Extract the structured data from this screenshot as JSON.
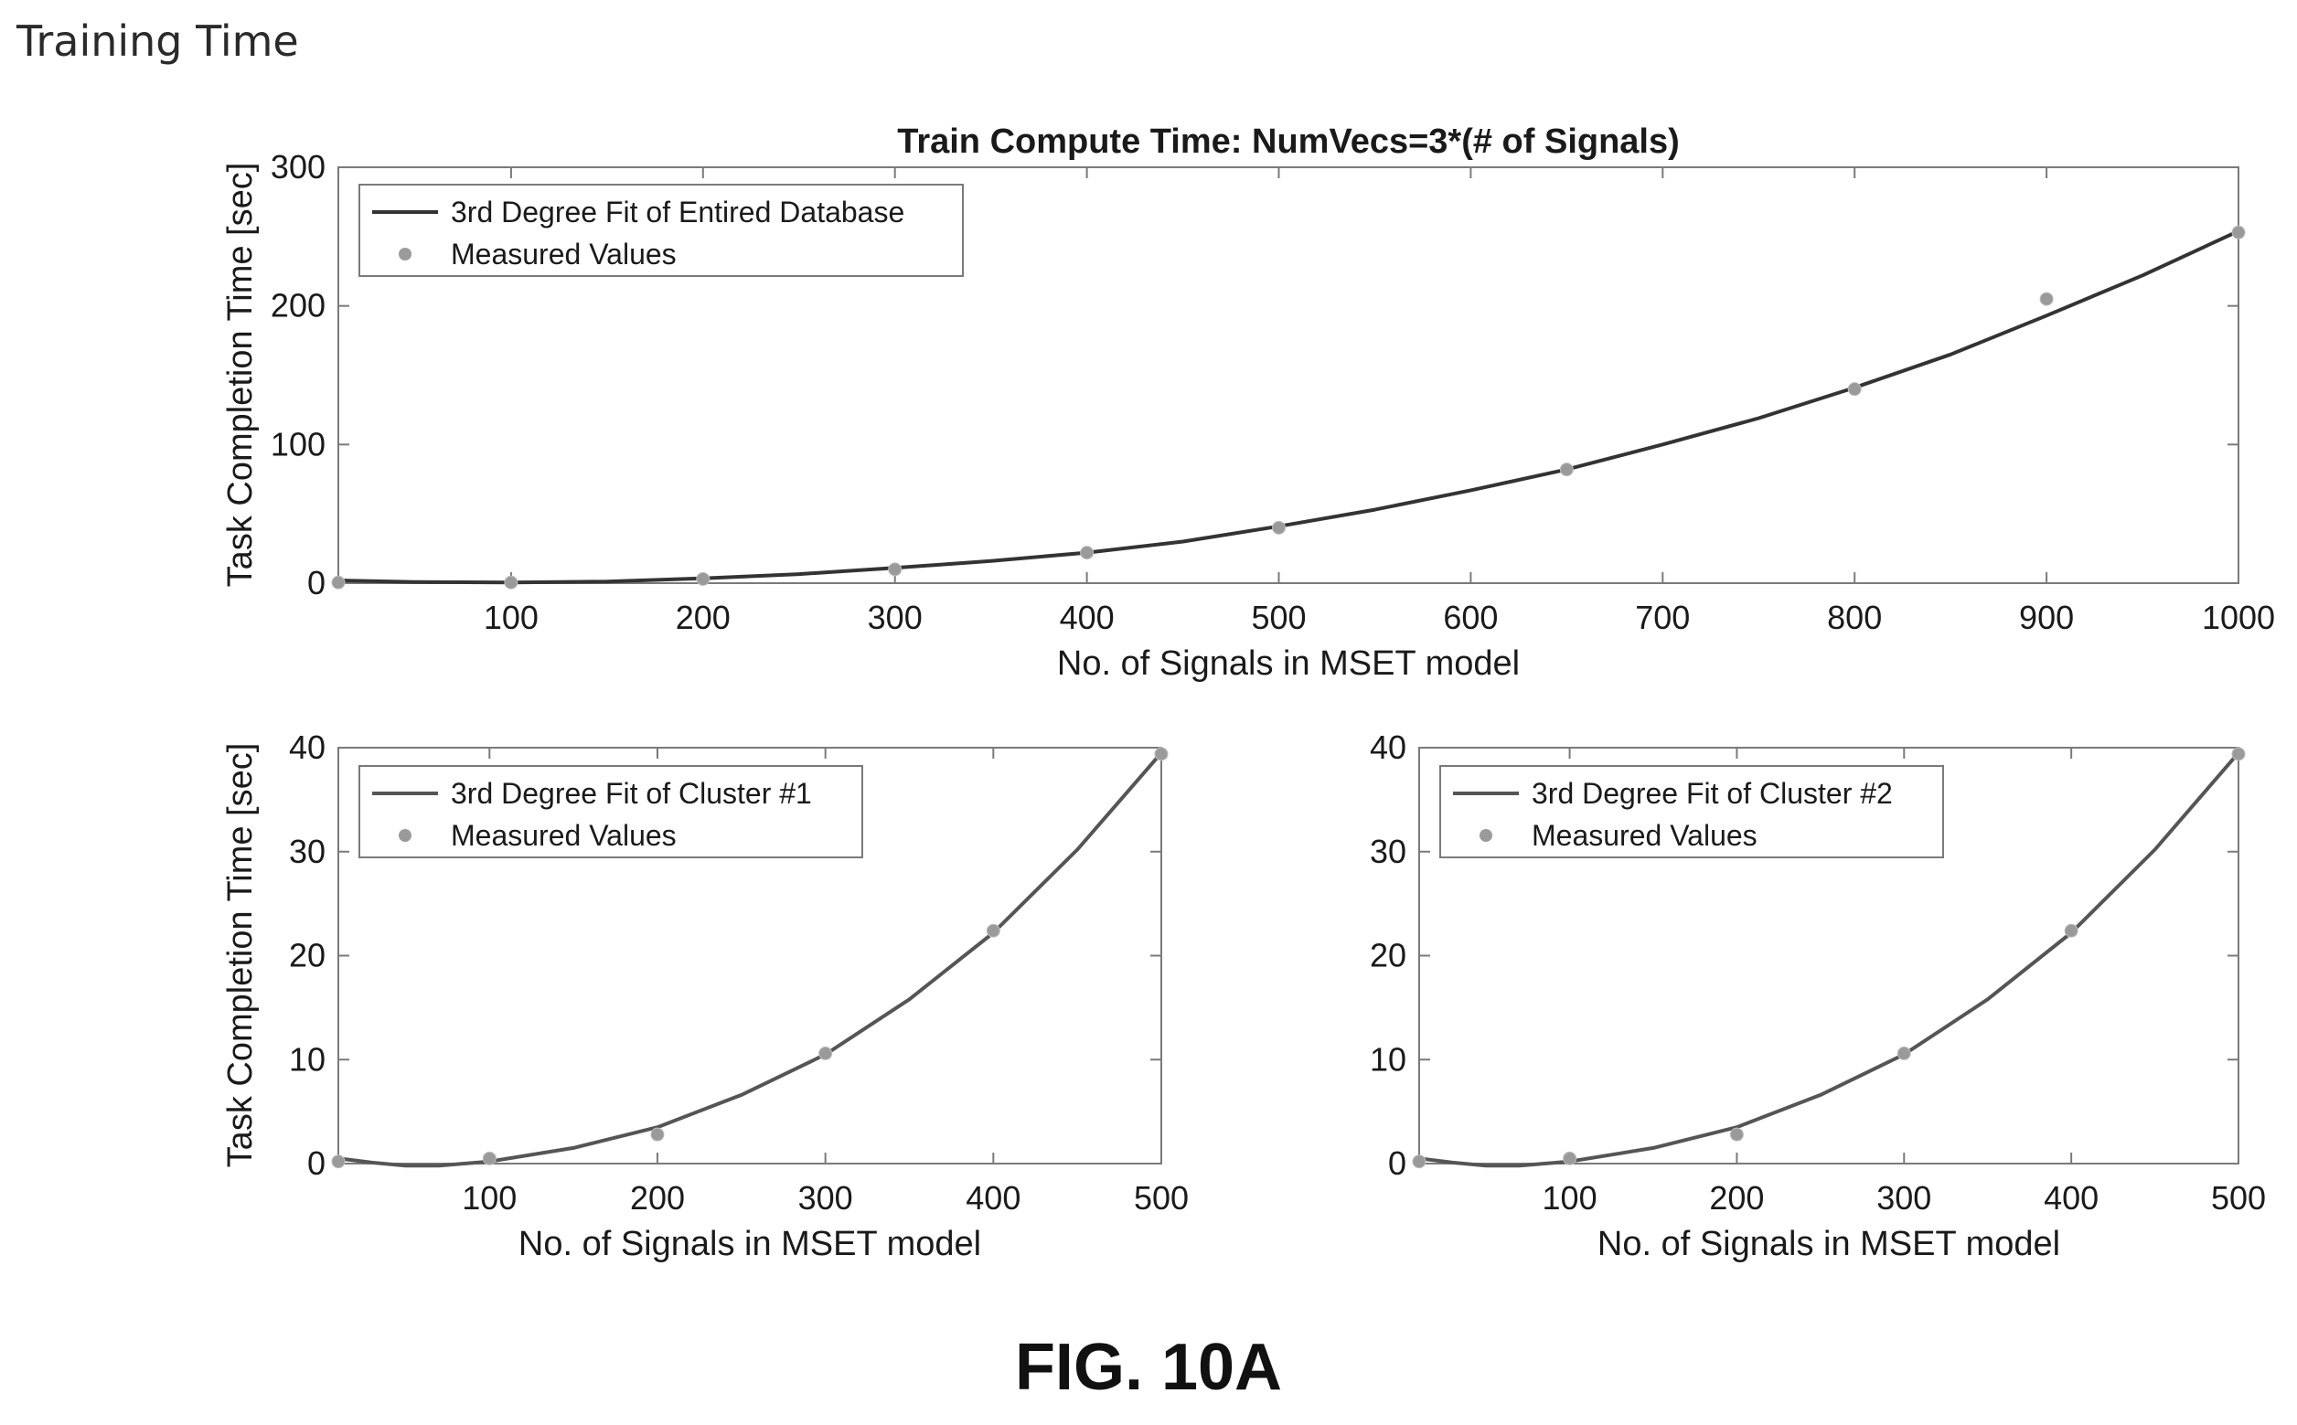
{
  "header": {
    "title": "Training Time"
  },
  "caption": "FIG. 10A",
  "chart_data": [
    {
      "type": "line",
      "title": "Train Compute Time: NumVecs=3*(# of Signals)",
      "xlabel": "No. of Signals in MSET model",
      "ylabel": "Task Completion Time [sec]",
      "xlim": [
        10,
        1000
      ],
      "ylim": [
        0,
        300
      ],
      "xticks": [
        100,
        200,
        300,
        400,
        500,
        600,
        700,
        800,
        900,
        1000
      ],
      "yticks": [
        0,
        100,
        200,
        300
      ],
      "grid": false,
      "legend_position": "top-left",
      "series": [
        {
          "name": "3rd Degree Fit of Entired Database",
          "type": "line",
          "color": "#333333",
          "x": [
            10,
            50,
            100,
            150,
            200,
            250,
            300,
            350,
            400,
            450,
            500,
            550,
            600,
            650,
            700,
            750,
            800,
            850,
            900,
            950,
            1000
          ],
          "y": [
            2,
            0.8,
            0.5,
            1.2,
            3.5,
            6.5,
            11,
            16,
            22,
            30,
            41,
            53,
            67,
            82,
            100,
            119,
            141,
            165,
            193,
            222,
            254
          ]
        },
        {
          "name": "Measured Values",
          "type": "scatter",
          "color": "#9a9a9a",
          "x": [
            10,
            100,
            200,
            300,
            400,
            500,
            650,
            800,
            900,
            1000
          ],
          "y": [
            0.5,
            0.5,
            3,
            10,
            22,
            40,
            82,
            140,
            205,
            253
          ]
        }
      ]
    },
    {
      "type": "line",
      "title": "",
      "xlabel": "No. of Signals in MSET model",
      "ylabel": "Task Completion Time [sec]",
      "xlim": [
        10,
        500
      ],
      "ylim": [
        0,
        40
      ],
      "xticks": [
        100,
        200,
        300,
        400,
        500
      ],
      "yticks": [
        0,
        10,
        20,
        30,
        40
      ],
      "grid": false,
      "legend_position": "top-left",
      "series": [
        {
          "name": "3rd Degree Fit of Cluster #1",
          "type": "line",
          "color": "#555555",
          "x": [
            10,
            30,
            50,
            70,
            100,
            150,
            200,
            250,
            300,
            350,
            400,
            450,
            500
          ],
          "y": [
            0.5,
            0.1,
            -0.2,
            -0.2,
            0.2,
            1.5,
            3.5,
            6.6,
            10.5,
            15.8,
            22.2,
            30.2,
            39.5
          ]
        },
        {
          "name": "Measured Values",
          "type": "scatter",
          "color": "#9a9a9a",
          "x": [
            10,
            100,
            200,
            300,
            400,
            500
          ],
          "y": [
            0.2,
            0.5,
            2.8,
            10.6,
            22.4,
            39.4
          ]
        }
      ]
    },
    {
      "type": "line",
      "title": "",
      "xlabel": "No. of Signals in MSET model",
      "ylabel": "",
      "xlim": [
        10,
        500
      ],
      "ylim": [
        0,
        40
      ],
      "xticks": [
        100,
        200,
        300,
        400,
        500
      ],
      "yticks": [
        0,
        10,
        20,
        30,
        40
      ],
      "grid": false,
      "legend_position": "top-left",
      "series": [
        {
          "name": "3rd Degree Fit of Cluster #2",
          "type": "line",
          "color": "#555555",
          "x": [
            10,
            30,
            50,
            70,
            100,
            150,
            200,
            250,
            300,
            350,
            400,
            450,
            500
          ],
          "y": [
            0.5,
            0.1,
            -0.2,
            -0.2,
            0.2,
            1.5,
            3.5,
            6.6,
            10.5,
            15.8,
            22.2,
            30.2,
            39.5
          ]
        },
        {
          "name": "Measured Values",
          "type": "scatter",
          "color": "#9a9a9a",
          "x": [
            10,
            100,
            200,
            300,
            400,
            500
          ],
          "y": [
            0.2,
            0.5,
            2.8,
            10.6,
            22.4,
            39.4
          ]
        }
      ]
    }
  ]
}
